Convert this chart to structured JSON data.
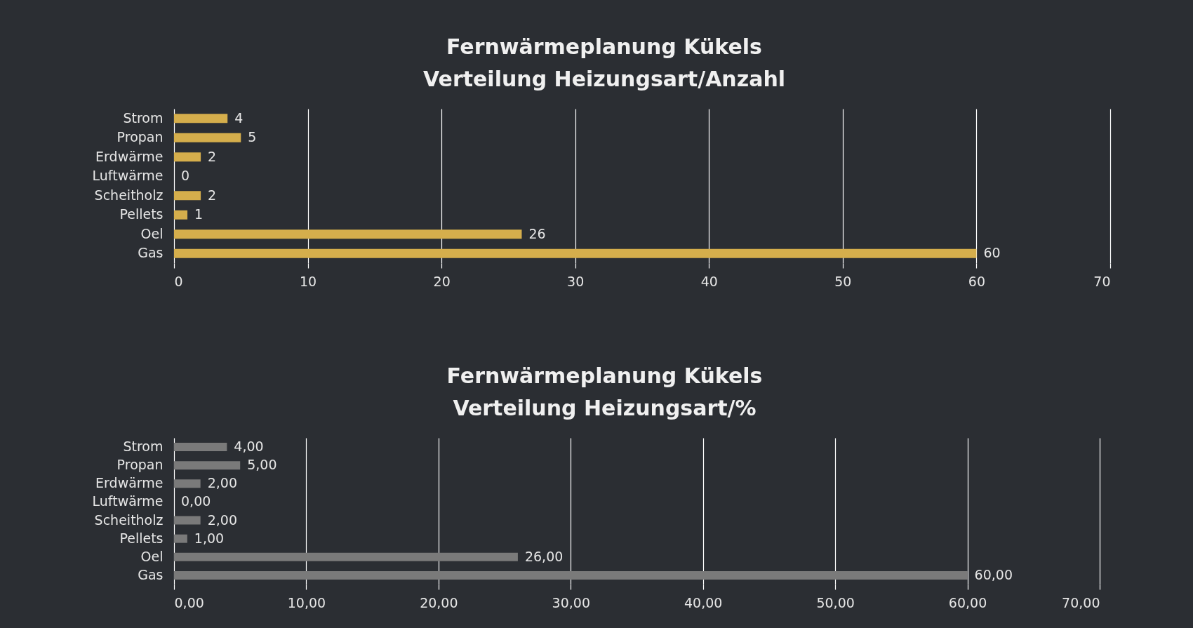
{
  "chart_data": [
    {
      "type": "bar",
      "orientation": "horizontal",
      "title": "Fernwärmeplanung Kükels\nVerteilung Heizungsart/Anzahl",
      "categories": [
        "Strom",
        "Propan",
        "Erdwärme",
        "Luftwärme",
        "Scheitholz",
        "Pellets",
        "Oel",
        "Gas"
      ],
      "values": [
        4,
        5,
        2,
        0,
        2,
        1,
        26,
        60
      ],
      "color": "#d5ae4c",
      "xlim": [
        0,
        70
      ],
      "xticks": [
        0,
        10,
        20,
        30,
        40,
        50,
        60,
        70
      ],
      "grid": "x",
      "data_labels": true
    },
    {
      "type": "bar",
      "orientation": "horizontal",
      "title": "Fernwärmeplanung Kükels\nVerteilung Heizungsart/%",
      "categories": [
        "Strom",
        "Propan",
        "Erdwärme",
        "Luftwärme",
        "Scheitholz",
        "Pellets",
        "Oel",
        "Gas"
      ],
      "values": [
        4,
        5,
        2,
        0,
        2,
        1,
        26,
        60
      ],
      "value_labels": [
        "4,00",
        "5,00",
        "2,00",
        "0,00",
        "2,00",
        "1,00",
        "26,00",
        "60,00"
      ],
      "color": "#7a7a7a",
      "xlim": [
        0,
        70
      ],
      "xticks": [
        {
          "value": 0,
          "label": "0,00"
        },
        {
          "value": 10,
          "label": "10,00"
        },
        {
          "value": 20,
          "label": "20,00"
        },
        {
          "value": 30,
          "label": "30,00"
        },
        {
          "value": 40,
          "label": "40,00"
        },
        {
          "value": 50,
          "label": "50,00"
        },
        {
          "value": 60,
          "label": "60,00"
        },
        {
          "value": 70,
          "label": "70,00"
        }
      ],
      "grid": "x"
    }
  ]
}
